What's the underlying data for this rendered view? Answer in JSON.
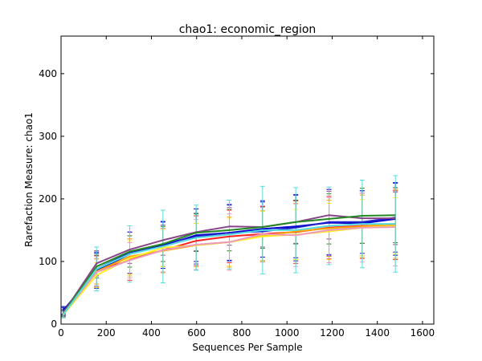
{
  "chart_data": {
    "type": "line",
    "title": "chao1: economic_region",
    "xlabel": "Sequences Per Sample",
    "ylabel": "Rarefaction Measure: chao1",
    "xlim": [
      0,
      1650
    ],
    "ylim": [
      0,
      460
    ],
    "x_ticks": [
      0,
      200,
      400,
      600,
      800,
      1000,
      1200,
      1400,
      1600
    ],
    "y_ticks": [
      0,
      100,
      200,
      300,
      400
    ],
    "grid": false,
    "legend": "none",
    "x": [
      10,
      157,
      304,
      451,
      598,
      745,
      892,
      1039,
      1186,
      1333,
      1480
    ],
    "series": [
      {
        "color": "#0000cc",
        "values": [
          22,
          85,
          112,
          126,
          142,
          146,
          152,
          156,
          162,
          161,
          168
        ],
        "err": [
          6,
          28,
          35,
          37,
          42,
          45,
          45,
          50,
          53,
          52,
          58
        ]
      },
      {
        "color": "#2222cc",
        "values": [
          20,
          88,
          114,
          128,
          140,
          146,
          148,
          154,
          163,
          163,
          170
        ],
        "err": [
          6,
          27,
          33,
          36,
          44,
          44,
          47,
          53,
          52,
          50,
          55
        ]
      },
      {
        "color": "#884488",
        "values": [
          18,
          97,
          119,
          134,
          147,
          156,
          155,
          163,
          174,
          169,
          169
        ],
        "err": [
          5,
          20,
          22,
          24,
          30,
          30,
          32,
          34,
          38,
          40,
          42
        ]
      },
      {
        "color": "#228822",
        "values": [
          17,
          92,
          116,
          128,
          146,
          150,
          155,
          163,
          168,
          173,
          174
        ],
        "err": [
          5,
          18,
          25,
          28,
          30,
          33,
          34,
          35,
          40,
          44,
          44
        ]
      },
      {
        "color": "#ff1f1f",
        "values": [
          16,
          84,
          103,
          118,
          133,
          140,
          144,
          147,
          154,
          157,
          158
        ],
        "err": [
          5,
          25,
          33,
          35,
          40,
          42,
          44,
          50,
          50,
          52,
          55
        ]
      },
      {
        "color": "#ffa500",
        "values": [
          16,
          84,
          108,
          117,
          126,
          131,
          141,
          148,
          153,
          156,
          160
        ],
        "err": [
          5,
          20,
          28,
          35,
          35,
          40,
          40,
          45,
          45,
          50,
          55
        ]
      },
      {
        "color": "#ffee22",
        "values": [
          15,
          78,
          105,
          122,
          126,
          131,
          140,
          143,
          148,
          154,
          157
        ],
        "err": [
          5,
          20,
          28,
          30,
          35,
          38,
          40,
          40,
          45,
          45,
          45
        ]
      },
      {
        "color": "#ee99bb",
        "values": [
          16,
          83,
          102,
          118,
          127,
          131,
          144,
          142,
          150,
          154,
          155
        ],
        "err": [
          5,
          22,
          28,
          35,
          40,
          45,
          45,
          50,
          52,
          55,
          62
        ]
      },
      {
        "color": "#55dddd",
        "values": [
          15,
          88,
          112,
          124,
          138,
          143,
          150,
          150,
          157,
          160,
          160
        ],
        "err": [
          5,
          35,
          45,
          58,
          52,
          55,
          70,
          68,
          62,
          70,
          77
        ]
      }
    ]
  }
}
